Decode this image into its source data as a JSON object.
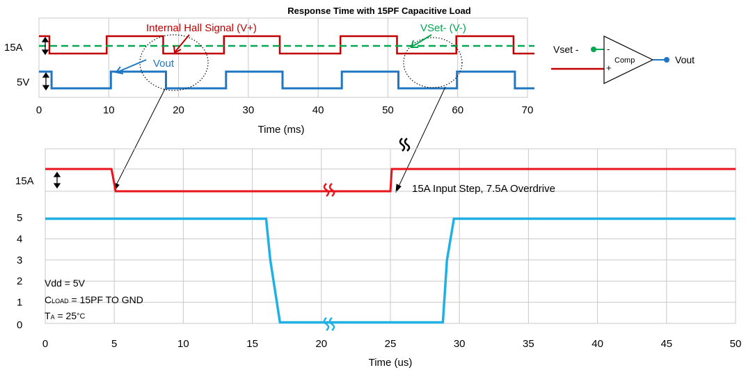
{
  "colors": {
    "hall": "#c00000",
    "vset": "#00a850",
    "vout_top": "#1f77c4",
    "vout_bottom": "#1fb1e6",
    "grid": "#c8c8c8",
    "text": "#000000"
  },
  "chart_data": [
    {
      "type": "line",
      "title": "Response  Time with 15PF Capacitive Load",
      "xlabel": "Time (ms)",
      "xlim": [
        0,
        70
      ],
      "xticks": [
        "0",
        "10",
        "20",
        "30",
        "40",
        "50",
        "60",
        "70"
      ],
      "ylabels": [
        "15A",
        "5V"
      ],
      "grid": true,
      "annotations": [
        "Internal Hall Signal (V+)",
        "VSet- (V-)",
        "Vout"
      ],
      "series": [
        {
          "name": "Internal Hall Signal (V+)",
          "x": [
            0,
            1.5,
            1.5,
            9.7,
            9.7,
            17.8,
            17.8,
            26.5,
            26.5,
            34.5,
            34.5,
            43.2,
            43.2,
            51.3,
            51.3,
            59.8,
            59.8,
            68,
            68,
            71
          ],
          "level": [
            "H",
            "H",
            "L",
            "L",
            "H",
            "H",
            "L",
            "L",
            "H",
            "H",
            "L",
            "L",
            "H",
            "H",
            "L",
            "L",
            "H",
            "H",
            "L",
            "L"
          ]
        },
        {
          "name": "VSet- (V-)",
          "x": [
            0,
            71
          ],
          "level": [
            "M",
            "M"
          ]
        },
        {
          "name": "Vout",
          "x": [
            0,
            1.8,
            1.8,
            10.3,
            10.3,
            18.2,
            18.2,
            26.8,
            26.8,
            34.9,
            34.9,
            43.4,
            43.4,
            51.5,
            51.5,
            59.9,
            59.9,
            68.2,
            68.2,
            71
          ],
          "level": [
            "H",
            "H",
            "L",
            "L",
            "H",
            "H",
            "L",
            "L",
            "H",
            "H",
            "L",
            "L",
            "H",
            "H",
            "L",
            "L",
            "H",
            "H",
            "L",
            "L"
          ]
        }
      ]
    },
    {
      "type": "line",
      "xlabel": "Time (us)",
      "xlim": [
        0,
        50
      ],
      "ylim": [
        0,
        5
      ],
      "xticks": [
        "0",
        "5",
        "10",
        "15",
        "20",
        "25",
        "30",
        "35",
        "40",
        "45",
        "50"
      ],
      "yticks": [
        "0",
        "1",
        "2",
        "3",
        "4",
        "5"
      ],
      "ylabels_extra": [
        "15A"
      ],
      "grid": true,
      "annotations": [
        "15A  Input Step, 7.5A Overdrive"
      ],
      "conditions": {
        "vdd": "Vdd = 5V",
        "cload_prefix": "C",
        "cload_sub": "LOAD",
        "cload_suffix": " = 15PF TO GND",
        "ta_prefix": "T",
        "ta_sub": "A",
        "ta_suffix": " = 25",
        "ta_unit": "°C"
      },
      "series": [
        {
          "name": "Internal Hall Signal",
          "x": [
            0,
            4.8,
            5.1,
            20,
            25.0,
            25.1,
            50
          ],
          "current": [
            15,
            15,
            7.5,
            7.5,
            7.5,
            15,
            15
          ]
        },
        {
          "name": "Vout",
          "x": [
            0,
            16,
            16.3,
            17,
            20,
            28.8,
            29.1,
            29.6,
            50
          ],
          "y": [
            4.95,
            4.95,
            3.0,
            0.05,
            0.05,
            0.05,
            3.0,
            4.95,
            4.95
          ]
        }
      ]
    }
  ],
  "comparator": {
    "vset_label": "Vset -",
    "block_label": "Comp",
    "minus": "-",
    "plus": "+",
    "vout_label": "Vout"
  }
}
